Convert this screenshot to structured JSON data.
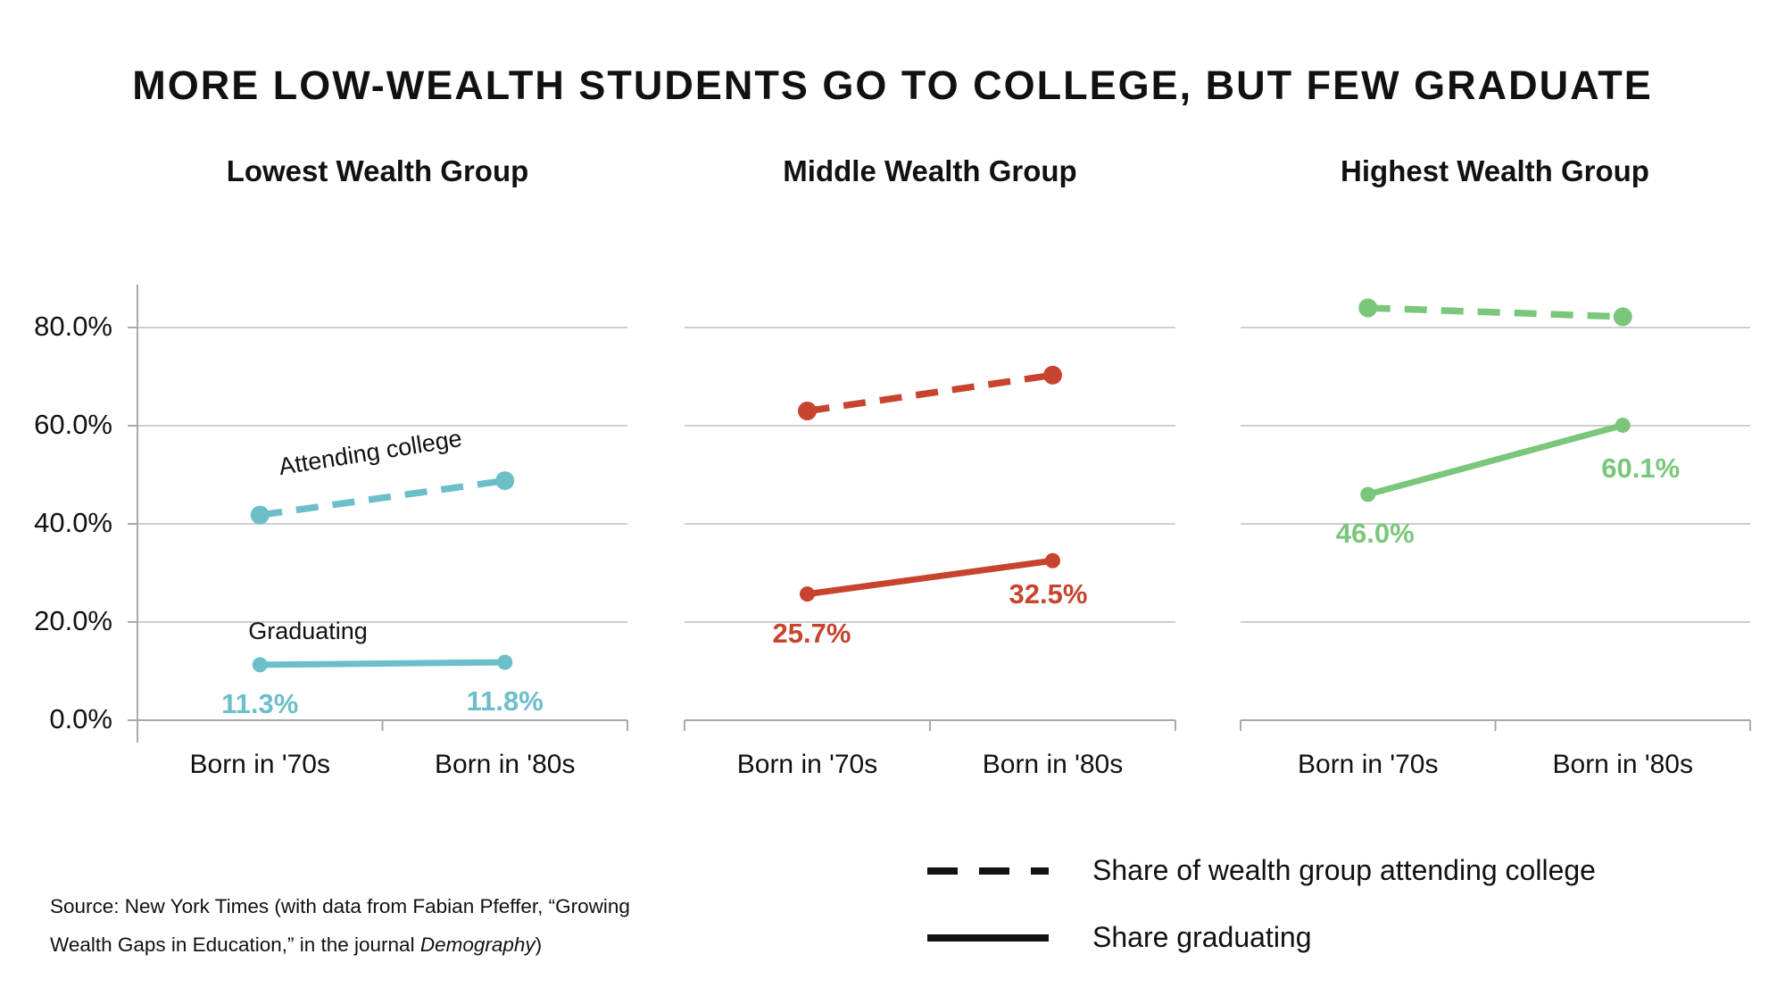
{
  "title": "MORE LOW-WEALTH STUDENTS GO TO COLLEGE, BUT FEW GRADUATE",
  "legend": {
    "attending": "Share of wealth group attending college",
    "graduating": "Share graduating"
  },
  "source": {
    "line1": "Source: New York Times (with data from Fabian Pfeffer, “Growing",
    "line2_prefix": "Wealth Gaps in Education,” in the journal ",
    "line2_italic": "Demography",
    "line2_suffix": ")"
  },
  "colors": {
    "teal": "#6CBEC8",
    "red": "#C8432E",
    "green": "#7AC67A",
    "grid": "#BDBDBD",
    "axis": "#A9A9A9",
    "legend_line": "#111111"
  },
  "chart_data": {
    "type": "line",
    "categories": [
      "Born in '70s",
      "Born in '80s"
    ],
    "ylim": [
      0,
      90
    ],
    "grid": true,
    "legend_position": "bottom-right",
    "yticks": [
      {
        "value": 0,
        "label": "0.0%"
      },
      {
        "value": 20,
        "label": "20.0%"
      },
      {
        "value": 40,
        "label": "40.0%"
      },
      {
        "value": 60,
        "label": "60.0%"
      },
      {
        "value": 80,
        "label": "80.0%"
      }
    ],
    "panels": [
      {
        "title": "Lowest Wealth Group",
        "color": "#6CBEC8",
        "series": [
          {
            "name": "attending-college",
            "style": "dashed",
            "values": [
              41.8,
              48.8
            ],
            "annotation": "Attending college",
            "data_labels": [
              "",
              ""
            ]
          },
          {
            "name": "graduating",
            "style": "solid",
            "values": [
              11.3,
              11.8
            ],
            "annotation": "Graduating",
            "data_labels": [
              "11.3%",
              "11.8%"
            ]
          }
        ]
      },
      {
        "title": "Middle Wealth Group",
        "color": "#C8432E",
        "series": [
          {
            "name": "attending-college",
            "style": "dashed",
            "values": [
              63.0,
              70.3
            ],
            "data_labels": [
              "",
              ""
            ]
          },
          {
            "name": "graduating",
            "style": "solid",
            "values": [
              25.7,
              32.5
            ],
            "data_labels": [
              "25.7%",
              "32.5%"
            ]
          }
        ]
      },
      {
        "title": "Highest Wealth Group",
        "color": "#7AC67A",
        "series": [
          {
            "name": "attending-college",
            "style": "dashed",
            "values": [
              84.0,
              82.2
            ],
            "data_labels": [
              "",
              ""
            ]
          },
          {
            "name": "graduating",
            "style": "solid",
            "values": [
              46.0,
              60.1
            ],
            "data_labels": [
              "46.0%",
              "60.1%"
            ]
          }
        ]
      }
    ]
  }
}
